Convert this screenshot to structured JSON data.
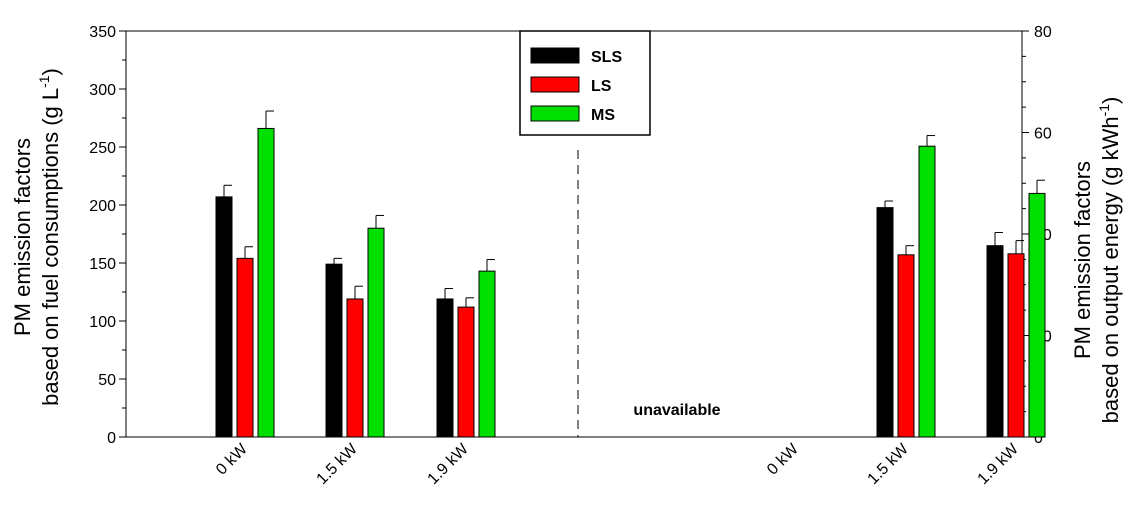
{
  "chart_data": {
    "type": "bar",
    "groups": [
      {
        "name": "fuel",
        "categories": [
          "0 kW",
          "1.5 kW",
          "1.9 kW"
        ],
        "axis": "left"
      },
      {
        "name": "energy",
        "categories": [
          "0 kW",
          "1.5 kW",
          "1.9 kW"
        ],
        "axis": "right"
      }
    ],
    "series": [
      {
        "name": "SLS",
        "color": "#000000",
        "left_values": [
          207,
          149,
          119
        ],
        "left_errors": [
          10,
          5,
          9
        ],
        "right_values": [
          null,
          45.2,
          37.7
        ],
        "right_errors": [
          null,
          1.3,
          2.6
        ]
      },
      {
        "name": "LS",
        "color": "#ff0000",
        "left_values": [
          154,
          119,
          112
        ],
        "left_errors": [
          10,
          11,
          8
        ],
        "right_values": [
          null,
          35.9,
          36.1
        ],
        "right_errors": [
          null,
          1.8,
          2.6
        ]
      },
      {
        "name": "MS",
        "color": "#00e000",
        "left_values": [
          266,
          180,
          143
        ],
        "left_errors": [
          15,
          11,
          10
        ],
        "right_values": [
          null,
          57.3,
          48.0
        ],
        "right_errors": [
          null,
          2.1,
          2.6
        ]
      }
    ],
    "y_left": {
      "label_line1": "PM emission factors",
      "label_line2_prefix": "based on fuel consumptions (g L",
      "label_line2_sup": "-1",
      "label_line2_suffix": ")",
      "ylim": [
        0,
        350
      ],
      "ticks": [
        "0",
        "50",
        "100",
        "150",
        "200",
        "250",
        "300",
        "350"
      ]
    },
    "y_right": {
      "label_line1": "PM emission factors",
      "label_line2_prefix": "based on output energy (g kWh",
      "label_line2_sup": "-1",
      "label_line2_suffix": ")",
      "ylim": [
        0,
        80
      ],
      "ticks": [
        "0",
        "20",
        "40",
        "60",
        "80"
      ]
    },
    "annotations": [
      {
        "text": "unavailable"
      }
    ],
    "legend_position": "top-center",
    "divider": "dashed vertical line between groups",
    "grid": false
  }
}
